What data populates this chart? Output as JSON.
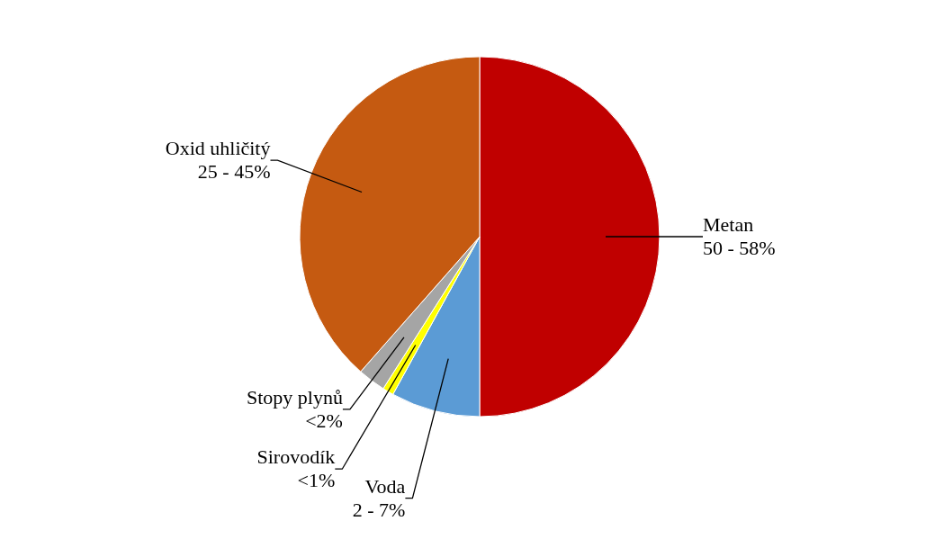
{
  "chart_data": {
    "type": "pie",
    "categories": [
      "Metan",
      "Voda",
      "Sirovodík",
      "Stopy plynů",
      "Oxid uhličitý"
    ],
    "values": [
      50,
      8,
      1,
      2.5,
      38.5
    ],
    "annotations": [
      "50 - 58%",
      "2 - 7%",
      "<1%",
      "<2%",
      "25 - 45%"
    ],
    "colors": [
      "#c00000",
      "#5b9bd5",
      "#ffff00",
      "#a5a5a5",
      "#c55a11"
    ]
  }
}
